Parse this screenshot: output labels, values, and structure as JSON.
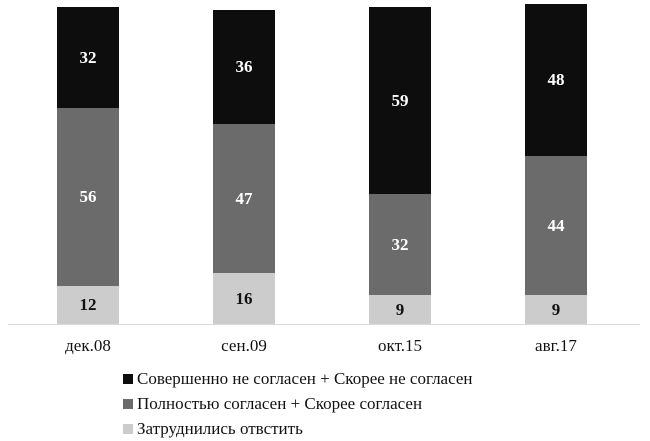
{
  "chart_data": {
    "type": "bar",
    "stacked": true,
    "title": "",
    "xlabel": "",
    "ylabel": "",
    "categories": [
      "дек.08",
      "сен.09",
      "окт.15",
      "авг.17"
    ],
    "series": [
      {
        "name": "Затруднились отвстить",
        "color": "#cccccc",
        "label_color": "#111111",
        "values": [
          12,
          16,
          9,
          9
        ]
      },
      {
        "name": "Полностью согласен + Скорее согласен",
        "color": "#6b6b6b",
        "label_color": "#ffffff",
        "values": [
          56,
          47,
          32,
          44
        ]
      },
      {
        "name": "Совершенно не согласен + Скорее не согласен",
        "color": "#0d0d0d",
        "label_color": "#ffffff",
        "values": [
          32,
          36,
          59,
          48
        ]
      }
    ],
    "legend": {
      "position": "bottom",
      "order": [
        "Совершенно не согласен + Скорее не согласен",
        "Полностью согласен + Скорее согласен",
        "Затруднились отвстить"
      ]
    },
    "grid": false,
    "data_labels": true
  },
  "legend": {
    "items": [
      {
        "label": "Совершенно не согласен + Скорее не согласен",
        "color": "#0d0d0d"
      },
      {
        "label": "Полностью согласен + Скорее согласен",
        "color": "#6b6b6b"
      },
      {
        "label": "Затруднились отвстить",
        "color": "#cccccc"
      }
    ]
  }
}
